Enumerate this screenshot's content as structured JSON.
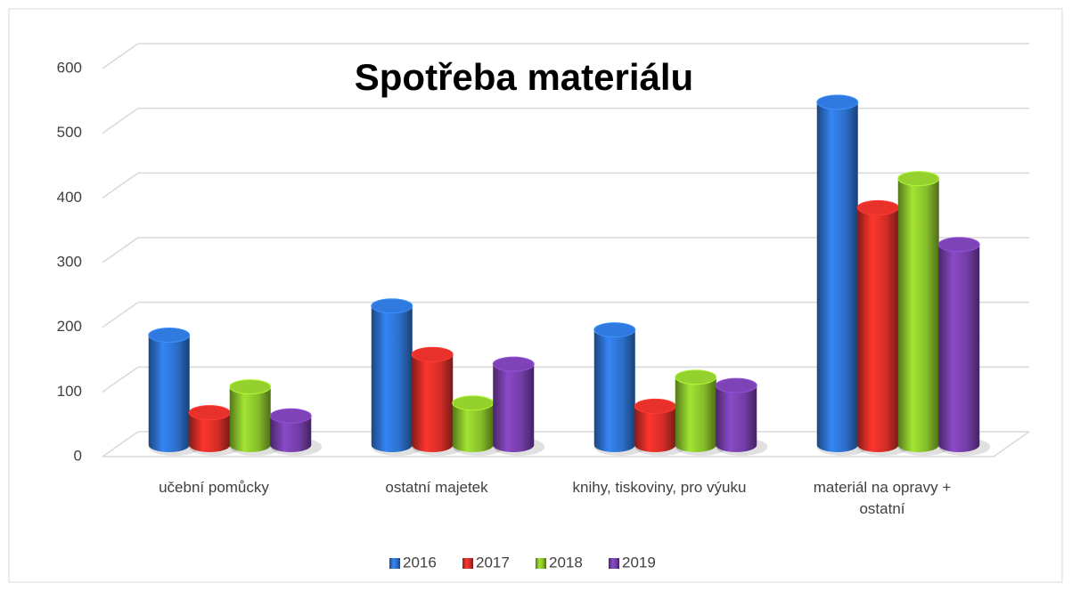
{
  "chart_data": {
    "type": "bar3d",
    "title": "Spotřeba materiálu",
    "categories": [
      "učební pomůcky",
      "ostatní majetek",
      "knihy, tiskoviny, pro výuku",
      "materiál na opravy + ostatní"
    ],
    "series": [
      {
        "name": "2016",
        "color": "#2e74d4",
        "values": [
          170,
          215,
          178,
          530
        ]
      },
      {
        "name": "2017",
        "color": "#dc2f28",
        "values": [
          50,
          140,
          60,
          367
        ]
      },
      {
        "name": "2018",
        "color": "#8dc62c",
        "values": [
          90,
          65,
          105,
          412
        ]
      },
      {
        "name": "2019",
        "color": "#7840ae",
        "values": [
          45,
          125,
          92,
          310
        ]
      }
    ],
    "ylim": [
      0,
      600
    ],
    "yticks": [
      0,
      100,
      200,
      300,
      400,
      500,
      600
    ],
    "grid": true,
    "legend": "bottom"
  }
}
